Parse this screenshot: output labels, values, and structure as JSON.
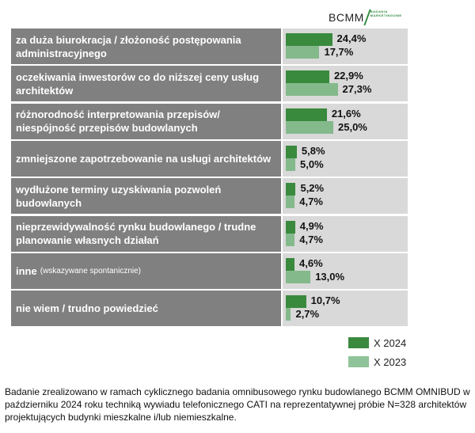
{
  "logo": {
    "main": "BCMM",
    "sub": "BADANIA MARKETINGOWE"
  },
  "chart_data": {
    "type": "bar",
    "orientation": "horizontal",
    "categories": [
      "za duża biurokracja / złożoność postępowania administracyjnego",
      "oczekiwania inwestorów co do niższej ceny usług architektów",
      "różnorodność interpretowania przepisów/ niespójność przepisów budowlanych",
      "zmniejszone zapotrzebowanie na usługi architektów",
      "wydłużone terminy uzyskiwania pozwoleń budowlanych",
      "nieprzewidywalność rynku budowlanego / trudne planowanie własnych działań",
      "inne",
      "nie wiem / trudno powiedzieć"
    ],
    "category_notes": [
      "",
      "",
      "",
      "",
      "",
      "",
      "(wskazywane spontanicznie)",
      ""
    ],
    "series": [
      {
        "name": "X 2024",
        "color": "#3a8a3e",
        "values": [
          24.4,
          22.9,
          21.6,
          5.8,
          5.2,
          4.9,
          4.6,
          10.7
        ],
        "labels": [
          "24,4%",
          "22,9%",
          "21,6%",
          "5,8%",
          "5,2%",
          "4,9%",
          "4,6%",
          "10,7%"
        ]
      },
      {
        "name": "X 2023",
        "color": "#84b98c",
        "values": [
          17.7,
          27.3,
          25.0,
          5.0,
          4.7,
          4.7,
          13.0,
          2.7
        ],
        "labels": [
          "17,7%",
          "27,3%",
          "25,0%",
          "5,0%",
          "4,7%",
          "4,7%",
          "13,0%",
          "2,7%"
        ]
      }
    ],
    "legend": "bottom-right"
  },
  "footnote": "Badanie zrealizowano w ramach cyklicznego badania omnibusowego rynku budowlanego BCMM OMNIBUD w październiku 2024 roku techniką wywiadu telefonicznego CATI na reprezentatywnej próbie N=328 architektów projektujących budynki mieszkalne i/lub niemieszkalne."
}
